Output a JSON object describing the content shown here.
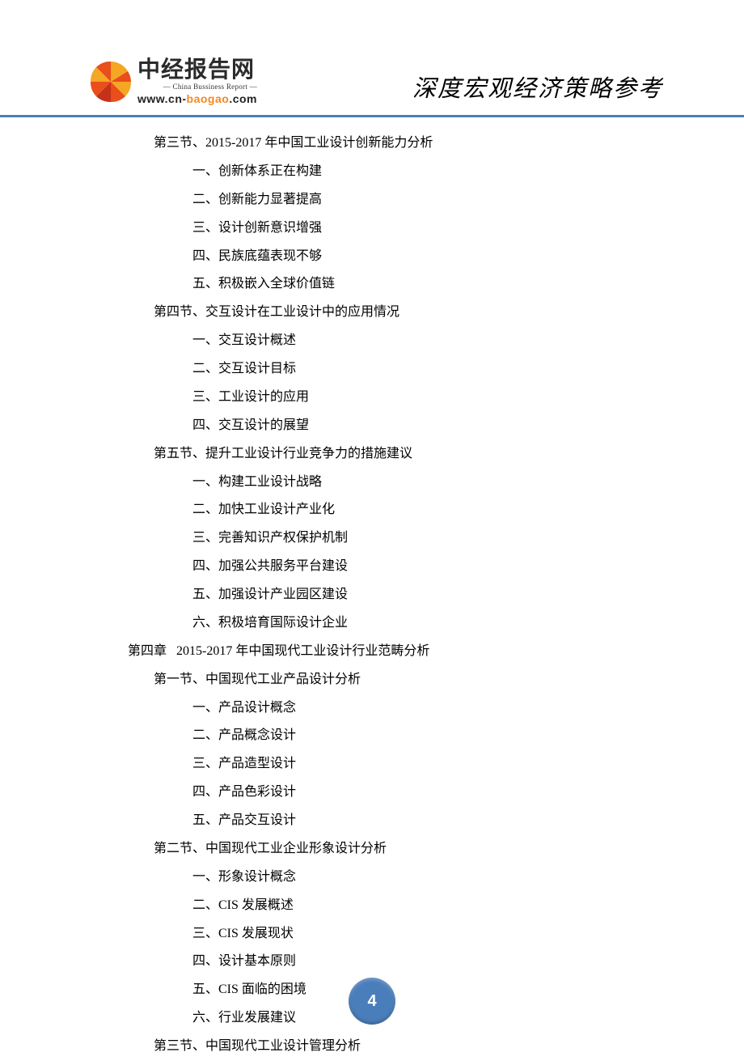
{
  "header": {
    "logo_title": "中经报告网",
    "logo_sub_en": "— China Bussiness Report —",
    "url_prefix": "www.cn-",
    "url_accent": "baogao",
    "url_tld": ".com",
    "right_text": "深度宏观经济策略参考",
    "logo_colors": {
      "orange": "#f5a623",
      "red": "#e94e1b",
      "dark_red": "#c4321a"
    },
    "accent_color": "#4a7ebb"
  },
  "toc": [
    {
      "level": "section",
      "text": "第三节、2015-2017 年中国工业设计创新能力分析"
    },
    {
      "level": "item",
      "text": "一、创新体系正在构建"
    },
    {
      "level": "item",
      "text": "二、创新能力显著提高"
    },
    {
      "level": "item",
      "text": "三、设计创新意识增强"
    },
    {
      "level": "item",
      "text": "四、民族底蕴表现不够"
    },
    {
      "level": "item",
      "text": "五、积极嵌入全球价值链"
    },
    {
      "level": "section",
      "text": "第四节、交互设计在工业设计中的应用情况"
    },
    {
      "level": "item",
      "text": "一、交互设计概述"
    },
    {
      "level": "item",
      "text": "二、交互设计目标"
    },
    {
      "level": "item",
      "text": "三、工业设计的应用"
    },
    {
      "level": "item",
      "text": "四、交互设计的展望"
    },
    {
      "level": "section",
      "text": "第五节、提升工业设计行业竞争力的措施建议"
    },
    {
      "level": "item",
      "text": "一、构建工业设计战略"
    },
    {
      "level": "item",
      "text": "二、加快工业设计产业化"
    },
    {
      "level": "item",
      "text": "三、完善知识产权保护机制"
    },
    {
      "level": "item",
      "text": "四、加强公共服务平台建设"
    },
    {
      "level": "item",
      "text": "五、加强设计产业园区建设"
    },
    {
      "level": "item",
      "text": "六、积极培育国际设计企业"
    },
    {
      "level": "chapter",
      "text": "第四章   2015-2017 年中国现代工业设计行业范畴分析"
    },
    {
      "level": "section",
      "text": "第一节、中国现代工业产品设计分析"
    },
    {
      "level": "item",
      "text": "一、产品设计概念"
    },
    {
      "level": "item",
      "text": "二、产品概念设计"
    },
    {
      "level": "item",
      "text": "三、产品造型设计"
    },
    {
      "level": "item",
      "text": "四、产品色彩设计"
    },
    {
      "level": "item",
      "text": "五、产品交互设计"
    },
    {
      "level": "section",
      "text": "第二节、中国现代工业企业形象设计分析"
    },
    {
      "level": "item",
      "text": "一、形象设计概念"
    },
    {
      "level": "item",
      "text": "二、CIS 发展概述"
    },
    {
      "level": "item",
      "text": "三、CIS 发展现状"
    },
    {
      "level": "item",
      "text": "四、设计基本原则"
    },
    {
      "level": "item",
      "text": "五、CIS 面临的困境"
    },
    {
      "level": "item",
      "text": "六、行业发展建议"
    },
    {
      "level": "section",
      "text": "第三节、中国现代工业设计管理分析"
    }
  ],
  "page_number": "4"
}
